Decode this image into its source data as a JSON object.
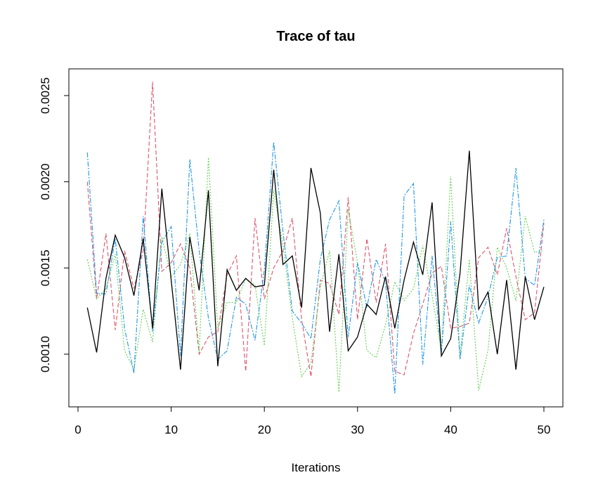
{
  "chart_data": {
    "type": "line",
    "title": "Trace of tau",
    "xlabel": "Iterations",
    "ylabel": "",
    "xlim": [
      0,
      50
    ],
    "ylim": [
      0.00078,
      0.00265
    ],
    "x_ticks": [
      0,
      10,
      20,
      30,
      40,
      50
    ],
    "x_tick_labels": [
      "0",
      "10",
      "20",
      "30",
      "40",
      "50"
    ],
    "y_ticks": [
      0.001,
      0.0015,
      0.002,
      0.0025
    ],
    "y_tick_labels": [
      "0.0010",
      "0.0015",
      "0.0020",
      "0.0025"
    ],
    "grid": false,
    "legend": "none",
    "x": [
      1,
      2,
      3,
      4,
      5,
      6,
      7,
      8,
      9,
      10,
      11,
      12,
      13,
      14,
      15,
      16,
      17,
      18,
      19,
      20,
      21,
      22,
      23,
      24,
      25,
      26,
      27,
      28,
      29,
      30,
      31,
      32,
      33,
      34,
      35,
      36,
      37,
      38,
      39,
      40,
      41,
      42,
      43,
      44,
      45,
      46,
      47,
      48,
      49,
      50
    ],
    "series": [
      {
        "color": "#000000",
        "dash": "solid",
        "values": [
          0.00127,
          0.00101,
          0.00144,
          0.00169,
          0.00156,
          0.00134,
          0.00167,
          0.00115,
          0.00196,
          0.00143,
          0.00091,
          0.00168,
          0.00137,
          0.00195,
          0.00093,
          0.00149,
          0.00137,
          0.00144,
          0.00139,
          0.0014,
          0.00207,
          0.00152,
          0.00157,
          0.00127,
          0.00208,
          0.00182,
          0.00113,
          0.00158,
          0.00102,
          0.0011,
          0.00129,
          0.00123,
          0.00145,
          0.00115,
          0.00143,
          0.00165,
          0.00146,
          0.00188,
          0.00099,
          0.00109,
          0.00147,
          0.00218,
          0.00126,
          0.00136,
          0.001,
          0.00143,
          0.00091,
          0.00145,
          0.0012,
          0.00139
        ]
      },
      {
        "color": "#DF536B",
        "dash": "6,3",
        "values": [
          0.002,
          0.00132,
          0.0017,
          0.00114,
          0.0016,
          0.00138,
          0.0016,
          0.00258,
          0.00148,
          0.00153,
          0.00164,
          0.0015,
          0.001,
          0.0011,
          0.00113,
          0.00146,
          0.00157,
          0.0009,
          0.00179,
          0.00132,
          0.0015,
          0.0016,
          0.00179,
          0.0012,
          0.00087,
          0.00143,
          0.00141,
          0.00123,
          0.00191,
          0.0012,
          0.00167,
          0.0013,
          0.00164,
          0.0009,
          0.00088,
          0.00112,
          0.00129,
          0.00147,
          0.00151,
          0.00115,
          0.00116,
          0.00118,
          0.00156,
          0.00162,
          0.00146,
          0.00173,
          0.00145,
          0.0012,
          0.00124,
          0.00176
        ]
      },
      {
        "color": "#61D04F",
        "dash": "2,2",
        "values": [
          0.00155,
          0.00132,
          0.00138,
          0.00158,
          0.00102,
          0.00091,
          0.00126,
          0.00107,
          0.00168,
          0.00145,
          0.00152,
          0.0017,
          0.00101,
          0.00214,
          0.00115,
          0.0013,
          0.0013,
          0.00144,
          0.0014,
          0.00105,
          0.00195,
          0.00163,
          0.00121,
          0.00087,
          0.00095,
          0.00139,
          0.0016,
          0.00078,
          0.00184,
          0.00153,
          0.00102,
          0.00098,
          0.00117,
          0.00142,
          0.00131,
          0.00138,
          0.00163,
          0.00134,
          0.00102,
          0.00203,
          0.00099,
          0.00155,
          0.00079,
          0.00102,
          0.00162,
          0.0015,
          0.00131,
          0.0018,
          0.00159,
          0.0016
        ]
      },
      {
        "color": "#2297E6",
        "dash": "7,2,2,2",
        "values": [
          0.00217,
          0.00135,
          0.00135,
          0.00167,
          0.00115,
          0.00089,
          0.0018,
          0.00113,
          0.00165,
          0.00174,
          0.00099,
          0.00213,
          0.0016,
          0.00121,
          0.00097,
          0.00102,
          0.00133,
          0.00129,
          0.00108,
          0.00149,
          0.00223,
          0.00171,
          0.00125,
          0.00118,
          0.00109,
          0.00155,
          0.00178,
          0.00189,
          0.0011,
          0.00153,
          0.00127,
          0.00155,
          0.00142,
          0.00077,
          0.00192,
          0.00199,
          0.00094,
          0.00157,
          0.001,
          0.00177,
          0.00097,
          0.0014,
          0.00118,
          0.00133,
          0.00156,
          0.00157,
          0.00208,
          0.00144,
          0.0014,
          0.00178
        ]
      }
    ]
  }
}
